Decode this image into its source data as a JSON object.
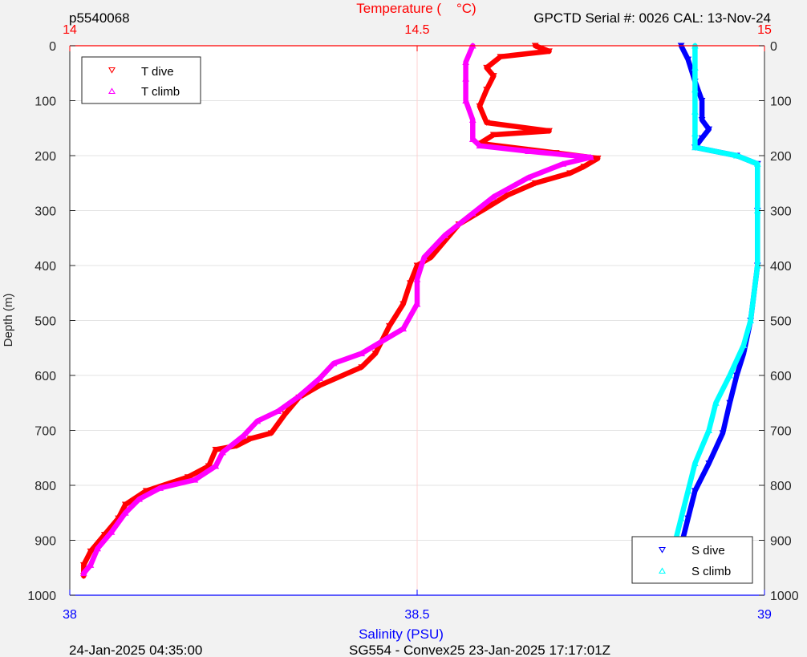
{
  "header": {
    "left": "p5540068",
    "right": "GPCTD Serial #: 0026 CAL: 13-Nov-24"
  },
  "footer": {
    "left": "24-Jan-2025 04:35:00",
    "center": "SG554 - Convex25 23-Jan-2025 17:17:01Z"
  },
  "colors": {
    "t_dive": "#ff0000",
    "t_climb": "#ff00ff",
    "s_dive": "#0000ff",
    "s_climb": "#00ffff",
    "top_axis": "#ff0000",
    "bottom_axis": "#0000ff",
    "grid": "#e3e3e3"
  },
  "chart_data": {
    "type": "scatter",
    "ylabel": "Depth (m)",
    "top_xlabel": "Temperature (    °C)",
    "bottom_xlabel": "Salinity (PSU)",
    "ylim": [
      0,
      1000
    ],
    "y_reversed": true,
    "top_xlim": [
      14,
      15
    ],
    "bottom_xlim": [
      38,
      39
    ],
    "y_ticks": [
      "0",
      "100",
      "200",
      "300",
      "400",
      "500",
      "600",
      "700",
      "800",
      "900",
      "1000"
    ],
    "top_ticks": [
      "14",
      "14.5",
      "15"
    ],
    "bottom_ticks": [
      "38",
      "38.5",
      "39"
    ],
    "grid": true,
    "legends": {
      "temperature": {
        "placement": "top-left",
        "entries": [
          "T dive",
          "T climb"
        ]
      },
      "salinity": {
        "placement": "bottom-right",
        "entries": [
          "S dive",
          "S climb"
        ]
      }
    },
    "series": [
      {
        "name": "T dive",
        "axis": "top",
        "marker": "triangle-down",
        "points": [
          [
            14.67,
            0
          ],
          [
            14.69,
            10
          ],
          [
            14.62,
            20
          ],
          [
            14.6,
            40
          ],
          [
            14.61,
            55
          ],
          [
            14.6,
            80
          ],
          [
            14.59,
            110
          ],
          [
            14.6,
            140
          ],
          [
            14.69,
            155
          ],
          [
            14.61,
            162
          ],
          [
            14.59,
            178
          ],
          [
            14.7,
            195
          ],
          [
            14.76,
            205
          ],
          [
            14.74,
            220
          ],
          [
            14.72,
            232
          ],
          [
            14.67,
            250
          ],
          [
            14.63,
            272
          ],
          [
            14.6,
            295
          ],
          [
            14.56,
            325
          ],
          [
            14.54,
            355
          ],
          [
            14.52,
            385
          ],
          [
            14.5,
            400
          ],
          [
            14.49,
            432
          ],
          [
            14.48,
            470
          ],
          [
            14.46,
            510
          ],
          [
            14.44,
            560
          ],
          [
            14.42,
            585
          ],
          [
            14.36,
            618
          ],
          [
            14.33,
            640
          ],
          [
            14.31,
            670
          ],
          [
            14.29,
            705
          ],
          [
            14.26,
            715
          ],
          [
            14.24,
            728
          ],
          [
            14.21,
            735
          ],
          [
            14.2,
            765
          ],
          [
            14.17,
            785
          ],
          [
            14.11,
            810
          ],
          [
            14.08,
            835
          ],
          [
            14.07,
            860
          ],
          [
            14.05,
            890
          ],
          [
            14.03,
            920
          ],
          [
            14.02,
            945
          ],
          [
            14.02,
            965
          ]
        ]
      },
      {
        "name": "T climb",
        "axis": "top",
        "marker": "triangle-up",
        "points": [
          [
            14.58,
            0
          ],
          [
            14.57,
            30
          ],
          [
            14.57,
            60
          ],
          [
            14.57,
            100
          ],
          [
            14.58,
            135
          ],
          [
            14.58,
            170
          ],
          [
            14.59,
            182
          ],
          [
            14.66,
            192
          ],
          [
            14.75,
            203
          ],
          [
            14.71,
            215
          ],
          [
            14.66,
            240
          ],
          [
            14.61,
            275
          ],
          [
            14.58,
            305
          ],
          [
            14.54,
            345
          ],
          [
            14.51,
            385
          ],
          [
            14.5,
            425
          ],
          [
            14.5,
            470
          ],
          [
            14.48,
            515
          ],
          [
            14.42,
            560
          ],
          [
            14.38,
            578
          ],
          [
            14.36,
            605
          ],
          [
            14.33,
            638
          ],
          [
            14.3,
            665
          ],
          [
            14.27,
            683
          ],
          [
            14.25,
            710
          ],
          [
            14.22,
            740
          ],
          [
            14.21,
            765
          ],
          [
            14.18,
            790
          ],
          [
            14.13,
            805
          ],
          [
            14.1,
            825
          ],
          [
            14.08,
            850
          ],
          [
            14.06,
            885
          ],
          [
            14.04,
            915
          ],
          [
            14.03,
            945
          ],
          [
            14.02,
            960
          ]
        ]
      },
      {
        "name": "S dive",
        "axis": "bottom",
        "marker": "triangle-down",
        "points": [
          [
            38.88,
            0
          ],
          [
            38.89,
            25
          ],
          [
            38.9,
            65
          ],
          [
            38.91,
            100
          ],
          [
            38.91,
            135
          ],
          [
            38.92,
            152
          ],
          [
            38.91,
            168
          ],
          [
            38.9,
            185
          ],
          [
            38.96,
            200
          ],
          [
            38.99,
            215
          ],
          [
            38.99,
            300
          ],
          [
            38.99,
            400
          ],
          [
            38.98,
            500
          ],
          [
            38.97,
            560
          ],
          [
            38.96,
            600
          ],
          [
            38.95,
            650
          ],
          [
            38.94,
            705
          ],
          [
            38.92,
            760
          ],
          [
            38.9,
            810
          ],
          [
            38.89,
            860
          ],
          [
            38.88,
            910
          ],
          [
            38.87,
            940
          ],
          [
            38.86,
            960
          ]
        ]
      },
      {
        "name": "S climb",
        "axis": "bottom",
        "marker": "triangle-up",
        "points": [
          [
            38.9,
            0
          ],
          [
            38.9,
            40
          ],
          [
            38.9,
            80
          ],
          [
            38.9,
            120
          ],
          [
            38.9,
            160
          ],
          [
            38.9,
            185
          ],
          [
            38.96,
            200
          ],
          [
            38.99,
            215
          ],
          [
            38.99,
            300
          ],
          [
            38.99,
            400
          ],
          [
            38.98,
            500
          ],
          [
            38.97,
            545
          ],
          [
            38.95,
            600
          ],
          [
            38.93,
            650
          ],
          [
            38.92,
            700
          ],
          [
            38.9,
            760
          ],
          [
            38.89,
            810
          ],
          [
            38.88,
            860
          ],
          [
            38.87,
            910
          ],
          [
            38.86,
            940
          ],
          [
            38.86,
            960
          ]
        ]
      }
    ]
  }
}
